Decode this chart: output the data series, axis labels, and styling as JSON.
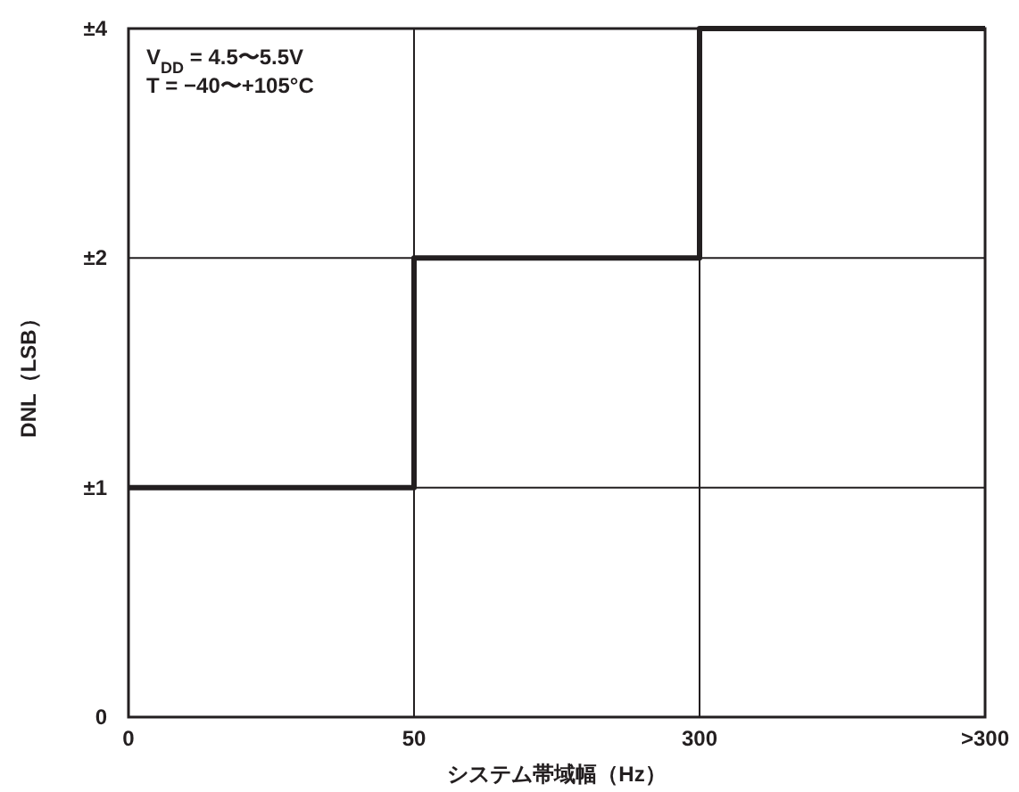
{
  "chart_data": {
    "type": "step",
    "xlabel": "システム帯域幅（Hz）",
    "ylabel": "DNL（LSB）",
    "categories": [
      "0",
      "50",
      "300",
      ">300"
    ],
    "series": [
      {
        "color": "#231f20",
        "values": [
          1,
          2,
          4,
          4
        ]
      }
    ],
    "log": "y",
    "ylim": [
      0.5,
      4
    ],
    "yticks": [
      {
        "value": 0.5,
        "label": "0"
      },
      {
        "value": 1,
        "label": "±1"
      },
      {
        "value": 2,
        "label": "±2"
      },
      {
        "value": 4,
        "label": "±4"
      }
    ],
    "grid": true,
    "annotations": [
      "V$_{DD}$ = 4.5〜5.5V",
      "T = −40〜+105°C"
    ]
  }
}
